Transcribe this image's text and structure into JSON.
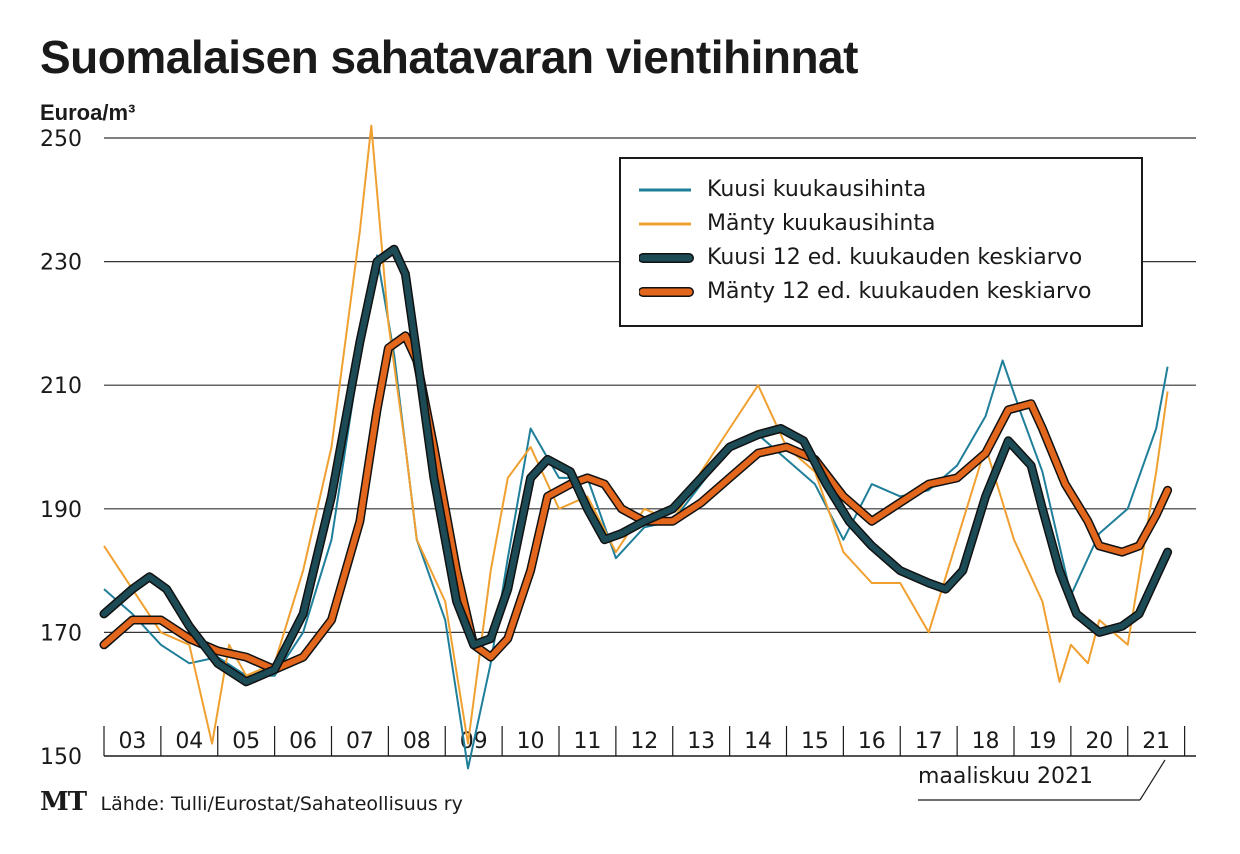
{
  "title": "Suomalaisen sahatavaran vientihinnat",
  "unit_label": "Euroa/m³",
  "footer": {
    "logo": "MT",
    "source": "Lähde: Tulli/Eurostat/Sahateollisuus ry"
  },
  "note": "maaliskuu 2021",
  "colors": {
    "kuusi_monthly": "#1f7f9a",
    "manty_monthly": "#f0a030",
    "kuusi_avg": "#1c4a55",
    "manty_avg": "#e2661c",
    "grid": "#333333"
  },
  "legend": [
    {
      "label": "Kuusi kuukausihinta",
      "color": "#1f7f9a",
      "style": "thin"
    },
    {
      "label": "Mänty kuukausihinta",
      "color": "#f0a030",
      "style": "thin"
    },
    {
      "label": "Kuusi 12 ed. kuukauden keskiarvo",
      "color": "#1c4a55",
      "style": "thick"
    },
    {
      "label": "Mänty 12 ed. kuukauden keskiarvo",
      "color": "#e2661c",
      "style": "thick"
    }
  ],
  "chart_data": {
    "type": "line",
    "title": "Suomalaisen sahatavaran vientihinnat",
    "ylabel": "Euroa/m³",
    "xlabel": "",
    "ylim": [
      150,
      250
    ],
    "xlim": [
      2002.5,
      2021.7
    ],
    "yticks": [
      150,
      170,
      190,
      210,
      230,
      250
    ],
    "x_categories": [
      "03",
      "04",
      "05",
      "06",
      "07",
      "08",
      "09",
      "10",
      "11",
      "12",
      "13",
      "14",
      "15",
      "16",
      "17",
      "18",
      "19",
      "20",
      "21"
    ],
    "grid": "horizontal",
    "legend_position": "top-right",
    "series": [
      {
        "name": "Kuusi kuukausihinta",
        "x": [
          2002.5,
          2003.0,
          2003.5,
          2004.0,
          2004.5,
          2005.0,
          2005.5,
          2006.0,
          2006.5,
          2007.0,
          2007.3,
          2007.6,
          2008.0,
          2008.5,
          2008.9,
          2009.3,
          2009.6,
          2010.0,
          2010.5,
          2011.0,
          2011.5,
          2012.0,
          2012.5,
          2013.0,
          2013.5,
          2014.0,
          2014.5,
          2015.0,
          2015.5,
          2016.0,
          2016.5,
          2017.0,
          2017.5,
          2018.0,
          2018.3,
          2018.6,
          2019.0,
          2019.5,
          2020.0,
          2020.5,
          2021.0,
          2021.2
        ],
        "values": [
          177,
          173,
          168,
          165,
          166,
          163,
          163,
          170,
          185,
          215,
          231,
          215,
          185,
          172,
          148,
          165,
          182,
          203,
          195,
          195,
          182,
          187,
          188,
          194,
          200,
          202,
          198,
          194,
          185,
          194,
          192,
          193,
          197,
          205,
          214,
          206,
          196,
          176,
          186,
          190,
          203,
          213
        ]
      },
      {
        "name": "Mänty kuukausihinta",
        "x": [
          2002.5,
          2003.0,
          2003.5,
          2004.0,
          2004.4,
          2004.7,
          2005.0,
          2005.5,
          2006.0,
          2006.5,
          2007.0,
          2007.2,
          2007.5,
          2007.8,
          2008.0,
          2008.5,
          2008.9,
          2009.3,
          2009.6,
          2010.0,
          2010.5,
          2011.0,
          2011.5,
          2012.0,
          2012.5,
          2013.0,
          2013.5,
          2014.0,
          2014.5,
          2015.0,
          2015.5,
          2016.0,
          2016.5,
          2017.0,
          2017.5,
          2018.0,
          2018.5,
          2019.0,
          2019.3,
          2019.5,
          2019.8,
          2020.0,
          2020.5,
          2021.0,
          2021.2
        ],
        "values": [
          184,
          177,
          170,
          168,
          152,
          168,
          163,
          165,
          180,
          200,
          235,
          252,
          220,
          200,
          185,
          175,
          152,
          180,
          195,
          200,
          190,
          192,
          183,
          190,
          188,
          196,
          203,
          210,
          200,
          196,
          183,
          178,
          178,
          170,
          185,
          200,
          185,
          175,
          162,
          168,
          165,
          172,
          168,
          196,
          209
        ]
      },
      {
        "name": "Kuusi 12 ed. kuukauden keskiarvo",
        "x": [
          2002.5,
          2003.0,
          2003.3,
          2003.6,
          2004.0,
          2004.5,
          2005.0,
          2005.5,
          2006.0,
          2006.5,
          2007.0,
          2007.3,
          2007.6,
          2007.8,
          2008.0,
          2008.3,
          2008.7,
          2009.0,
          2009.3,
          2009.6,
          2010.0,
          2010.3,
          2010.7,
          2011.0,
          2011.3,
          2011.6,
          2012.0,
          2012.5,
          2013.0,
          2013.5,
          2014.0,
          2014.4,
          2014.8,
          2015.2,
          2015.6,
          2016.0,
          2016.5,
          2017.0,
          2017.3,
          2017.6,
          2018.0,
          2018.4,
          2018.8,
          2019.0,
          2019.3,
          2019.6,
          2020.0,
          2020.4,
          2020.7,
          2021.0,
          2021.2
        ],
        "values": [
          173,
          177,
          179,
          177,
          171,
          165,
          162,
          164,
          173,
          192,
          217,
          230,
          232,
          228,
          215,
          195,
          175,
          168,
          169,
          177,
          195,
          198,
          196,
          190,
          185,
          186,
          188,
          190,
          195,
          200,
          202,
          203,
          201,
          194,
          188,
          184,
          180,
          178,
          177,
          180,
          192,
          201,
          197,
          190,
          180,
          173,
          170,
          171,
          173,
          179,
          183
        ]
      },
      {
        "name": "Mänty 12 ed. kuukauden keskiarvo",
        "x": [
          2002.5,
          2003.0,
          2003.5,
          2004.0,
          2004.5,
          2005.0,
          2005.5,
          2006.0,
          2006.5,
          2007.0,
          2007.3,
          2007.5,
          2007.8,
          2008.0,
          2008.3,
          2008.7,
          2009.0,
          2009.3,
          2009.6,
          2010.0,
          2010.3,
          2010.7,
          2011.0,
          2011.3,
          2011.6,
          2012.0,
          2012.5,
          2013.0,
          2013.5,
          2014.0,
          2014.5,
          2015.0,
          2015.5,
          2016.0,
          2016.5,
          2017.0,
          2017.5,
          2018.0,
          2018.4,
          2018.8,
          2019.0,
          2019.4,
          2019.8,
          2020.0,
          2020.4,
          2020.7,
          2021.0,
          2021.2
        ],
        "values": [
          168,
          172,
          172,
          169,
          167,
          166,
          164,
          166,
          172,
          188,
          206,
          216,
          218,
          214,
          200,
          180,
          168,
          166,
          169,
          180,
          192,
          194,
          195,
          194,
          190,
          188,
          188,
          191,
          195,
          199,
          200,
          198,
          192,
          188,
          191,
          194,
          195,
          199,
          206,
          207,
          203,
          194,
          188,
          184,
          183,
          184,
          189,
          193
        ]
      }
    ]
  }
}
